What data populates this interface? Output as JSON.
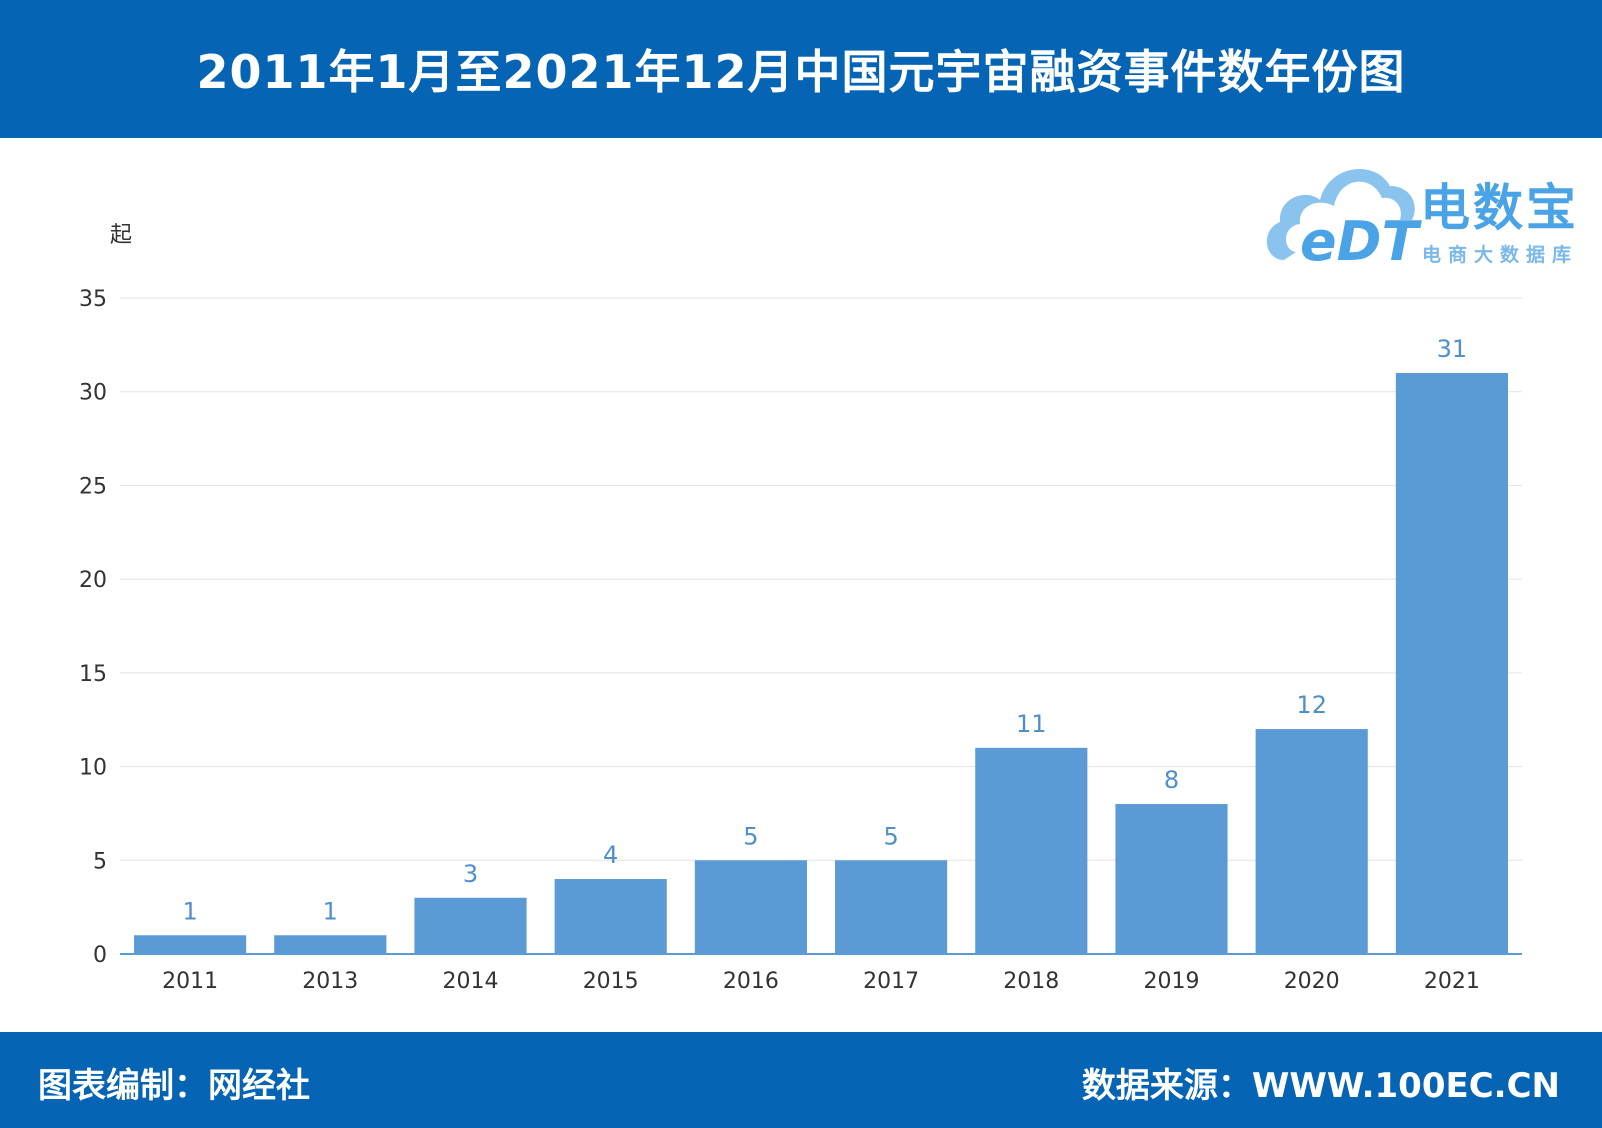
{
  "header": {
    "title": "2011年1月至2021年12月中国元宇宙融资事件数年份图"
  },
  "logo": {
    "brand": "电数宝",
    "sub": "电商大数据库",
    "mark": "eDT"
  },
  "footer": {
    "left": "图表编制：网经社",
    "right": "数据来源：WWW.100EC.CN"
  },
  "colors": {
    "header_bg": "#0564b4",
    "bar": "#5b9bd5",
    "data_label": "#4f90cc",
    "logo": "#4aa3e6"
  },
  "chart_data": {
    "type": "bar",
    "title": "2011年1月至2021年12月中国元宇宙融资事件数年份图",
    "ylabel": "起",
    "xlabel": "",
    "categories": [
      "2011",
      "2013",
      "2014",
      "2015",
      "2016",
      "2017",
      "2018",
      "2019",
      "2020",
      "2021"
    ],
    "values": [
      1,
      1,
      3,
      4,
      5,
      5,
      11,
      8,
      12,
      31
    ],
    "ylim": [
      0,
      35
    ],
    "yticks": [
      0,
      5,
      10,
      15,
      20,
      25,
      30,
      35
    ],
    "grid": true,
    "legend": "none"
  }
}
